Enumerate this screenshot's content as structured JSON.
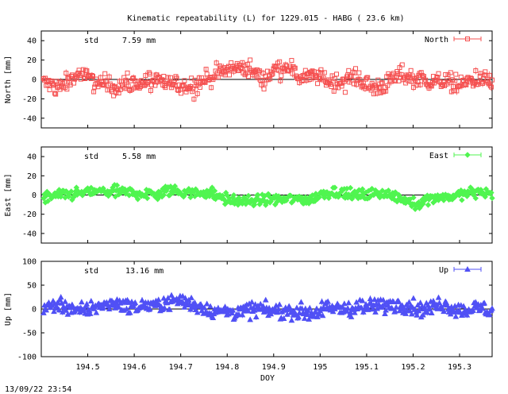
{
  "title": "Kinematic repeatability (L) for 1229.015 - HABG  ( 23.6 km)",
  "footer_timestamp": "13/09/22 23:54",
  "chart_data": [
    {
      "type": "scatter",
      "key": "north",
      "ylabel": "North [mm]",
      "ylim": [
        -50,
        50
      ],
      "yticks": [
        "40",
        "20",
        "0",
        "-20",
        "-40"
      ],
      "ytick_values": [
        40,
        20,
        0,
        -20,
        -40
      ],
      "std_label": "std",
      "std_value": "7.59 mm",
      "legend": "North",
      "legend_position": "top-right",
      "marker": "square",
      "color": "#f55050",
      "x_range": [
        194.405,
        195.37
      ],
      "profile": [
        [
          194.405,
          -4
        ],
        [
          194.44,
          -8
        ],
        [
          194.48,
          6
        ],
        [
          194.52,
          -4
        ],
        [
          194.56,
          -6
        ],
        [
          194.6,
          -4
        ],
        [
          194.64,
          -2
        ],
        [
          194.68,
          -5
        ],
        [
          194.72,
          -7
        ],
        [
          194.74,
          -3
        ],
        [
          194.76,
          2
        ],
        [
          194.8,
          10
        ],
        [
          194.84,
          13
        ],
        [
          194.88,
          0
        ],
        [
          194.9,
          9
        ],
        [
          194.93,
          16
        ],
        [
          194.95,
          3
        ],
        [
          194.99,
          4
        ],
        [
          195.02,
          -3
        ],
        [
          195.05,
          -2
        ],
        [
          195.08,
          4
        ],
        [
          195.11,
          -10
        ],
        [
          195.14,
          -5
        ],
        [
          195.17,
          5
        ],
        [
          195.2,
          2
        ],
        [
          195.24,
          -2
        ],
        [
          195.28,
          -3
        ],
        [
          195.31,
          -4
        ],
        [
          195.34,
          1
        ],
        [
          195.37,
          -2
        ]
      ],
      "noise": 8
    },
    {
      "type": "scatter",
      "key": "east",
      "ylabel": "East [mm]",
      "ylim": [
        -50,
        50
      ],
      "yticks": [
        "40",
        "20",
        "0",
        "-20",
        "-40"
      ],
      "ytick_values": [
        40,
        20,
        0,
        -20,
        -40
      ],
      "std_label": "std",
      "std_value": "5.58 mm",
      "legend": "East",
      "legend_position": "top-right",
      "marker": "diamond",
      "color": "#50f550",
      "x_range": [
        194.405,
        195.37
      ],
      "profile": [
        [
          194.405,
          -3
        ],
        [
          194.45,
          0
        ],
        [
          194.5,
          3
        ],
        [
          194.55,
          4
        ],
        [
          194.6,
          2
        ],
        [
          194.65,
          1
        ],
        [
          194.68,
          5
        ],
        [
          194.72,
          2
        ],
        [
          194.76,
          3
        ],
        [
          194.8,
          -5
        ],
        [
          194.85,
          -7
        ],
        [
          194.9,
          -4
        ],
        [
          194.95,
          -4
        ],
        [
          194.98,
          -6
        ],
        [
          195.0,
          1
        ],
        [
          195.03,
          4
        ],
        [
          195.06,
          0
        ],
        [
          195.1,
          0
        ],
        [
          195.14,
          2
        ],
        [
          195.18,
          -6
        ],
        [
          195.21,
          -9
        ],
        [
          195.24,
          -2
        ],
        [
          195.28,
          -2
        ],
        [
          195.31,
          1
        ],
        [
          195.35,
          3
        ],
        [
          195.37,
          0
        ]
      ],
      "noise": 5
    },
    {
      "type": "scatter",
      "key": "up",
      "ylabel": "Up [mm]",
      "ylim": [
        -100,
        100
      ],
      "yticks": [
        "100",
        "50",
        "0",
        "-50",
        "-100"
      ],
      "ytick_values": [
        100,
        50,
        0,
        -50,
        -100
      ],
      "std_label": "std",
      "std_value": "13.16 mm",
      "legend": "Up",
      "legend_position": "top-right",
      "marker": "triangle",
      "color": "#5050f5",
      "x_range": [
        194.405,
        195.37
      ],
      "profile": [
        [
          194.405,
          2
        ],
        [
          194.44,
          12
        ],
        [
          194.48,
          -6
        ],
        [
          194.52,
          6
        ],
        [
          194.56,
          12
        ],
        [
          194.6,
          5
        ],
        [
          194.64,
          8
        ],
        [
          194.67,
          14
        ],
        [
          194.7,
          18
        ],
        [
          194.74,
          5
        ],
        [
          194.78,
          -5
        ],
        [
          194.82,
          -8
        ],
        [
          194.86,
          0
        ],
        [
          194.9,
          -6
        ],
        [
          194.94,
          -4
        ],
        [
          194.98,
          -10
        ],
        [
          195.02,
          3
        ],
        [
          195.06,
          0
        ],
        [
          195.1,
          5
        ],
        [
          195.14,
          8
        ],
        [
          195.18,
          8
        ],
        [
          195.22,
          0
        ],
        [
          195.26,
          10
        ],
        [
          195.3,
          -3
        ],
        [
          195.34,
          2
        ],
        [
          195.37,
          -5
        ]
      ],
      "noise": 13
    }
  ],
  "x_axis": {
    "label": "DOY",
    "ticks": [
      "194.5",
      "194.6",
      "194.7",
      "194.8",
      "194.9",
      "195",
      "195.1",
      "195.2",
      "195.3"
    ],
    "tick_values": [
      194.5,
      194.6,
      194.7,
      194.8,
      194.9,
      195.0,
      195.1,
      195.2,
      195.3
    ],
    "xlim": [
      194.4,
      195.37
    ]
  }
}
